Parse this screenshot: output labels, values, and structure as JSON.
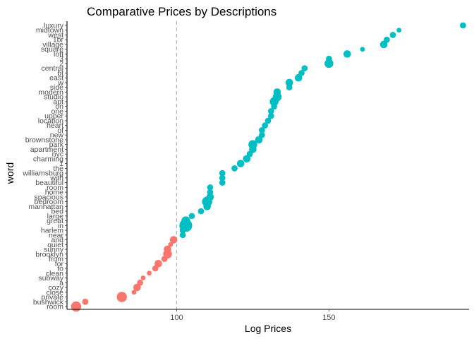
{
  "chart_data": {
    "type": "scatter",
    "title": "Comparative Prices by Descriptions",
    "xlabel": "Log Prices",
    "ylabel": "word",
    "xlim": [
      64,
      196
    ],
    "xticks": [
      100,
      150
    ],
    "reference_line": 100,
    "grid": false,
    "legend": "none",
    "colors": {
      "below": "#F8766D",
      "above": "#00BFC4",
      "reference": "#b3b3b3"
    },
    "categories": [
      "room",
      "bushwick",
      "private",
      "close",
      "cozy",
      "a",
      "subway",
      "clean",
      "to",
      "for",
      "from",
      "brooklyn",
      "sunny",
      "quiet",
      "and",
      "near",
      "harlem",
      "in",
      "great",
      "large",
      "bed",
      "manhattan",
      "bedroom",
      "spacious",
      "home",
      "room",
      "beautiful",
      "with",
      "williamsburg",
      "the",
      "1",
      "charming",
      "nyc",
      "apartment",
      "park",
      "brownstone",
      "new",
      "of",
      "heart",
      "location",
      "upper",
      "one",
      "on",
      "apt",
      "studio",
      "modern",
      "side",
      "w",
      "east",
      "bt",
      "central",
      "2",
      "3",
      "loft",
      "square",
      "village",
      "1br",
      "west",
      "midtown",
      "luxury"
    ],
    "points": [
      {
        "word": "room",
        "x": 67,
        "size": 6
      },
      {
        "word": "bushwick",
        "x": 70,
        "size": 3
      },
      {
        "word": "private",
        "x": 82,
        "size": 6
      },
      {
        "word": "close",
        "x": 86,
        "size": 2
      },
      {
        "word": "cozy",
        "x": 87,
        "size": 4
      },
      {
        "word": "a",
        "x": 88,
        "size": 3
      },
      {
        "word": "subway",
        "x": 89,
        "size": 2
      },
      {
        "word": "clean",
        "x": 91,
        "size": 2
      },
      {
        "word": "to",
        "x": 93,
        "size": 3
      },
      {
        "word": "for",
        "x": 94,
        "size": 4
      },
      {
        "word": "from",
        "x": 96,
        "size": 3
      },
      {
        "word": "brooklyn",
        "x": 97,
        "size": 5
      },
      {
        "word": "sunny",
        "x": 97,
        "size": 4
      },
      {
        "word": "quiet",
        "x": 98,
        "size": 2
      },
      {
        "word": "and",
        "x": 99,
        "size": 4
      },
      {
        "word": "near",
        "x": 102,
        "size": 3
      },
      {
        "word": "harlem",
        "x": 102,
        "size": 3
      },
      {
        "word": "in",
        "x": 103,
        "size": 8
      },
      {
        "word": "great",
        "x": 103,
        "size": 5
      },
      {
        "word": "large",
        "x": 105,
        "size": 3
      },
      {
        "word": "bed",
        "x": 108,
        "size": 3
      },
      {
        "word": "manhattan",
        "x": 110,
        "size": 4
      },
      {
        "word": "bedroom",
        "x": 110,
        "size": 6
      },
      {
        "word": "spacious",
        "x": 111,
        "size": 4
      },
      {
        "word": "home",
        "x": 111,
        "size": 3
      },
      {
        "word": "room",
        "x": 111,
        "size": 3
      },
      {
        "word": "beautiful",
        "x": 115,
        "size": 3
      },
      {
        "word": "with",
        "x": 115,
        "size": 3
      },
      {
        "word": "williamsburg",
        "x": 115,
        "size": 3
      },
      {
        "word": "the",
        "x": 119,
        "size": 3
      },
      {
        "word": "1",
        "x": 121,
        "size": 4
      },
      {
        "word": "charming",
        "x": 123,
        "size": 4
      },
      {
        "word": "nyc",
        "x": 124,
        "size": 3
      },
      {
        "word": "apartment",
        "x": 125,
        "size": 4
      },
      {
        "word": "park",
        "x": 125,
        "size": 5
      },
      {
        "word": "brownstone",
        "x": 127,
        "size": 4
      },
      {
        "word": "new",
        "x": 128,
        "size": 3
      },
      {
        "word": "of",
        "x": 128,
        "size": 3
      },
      {
        "word": "heart",
        "x": 129,
        "size": 3
      },
      {
        "word": "location",
        "x": 130,
        "size": 3
      },
      {
        "word": "upper",
        "x": 131,
        "size": 3
      },
      {
        "word": "one",
        "x": 131,
        "size": 3
      },
      {
        "word": "on",
        "x": 132,
        "size": 3
      },
      {
        "word": "apt",
        "x": 132,
        "size": 5
      },
      {
        "word": "studio",
        "x": 133,
        "size": 5
      },
      {
        "word": "modern",
        "x": 133,
        "size": 4
      },
      {
        "word": "side",
        "x": 137,
        "size": 3
      },
      {
        "word": "w",
        "x": 137,
        "size": 4
      },
      {
        "word": "east",
        "x": 140,
        "size": 4
      },
      {
        "word": "bt",
        "x": 141,
        "size": 3
      },
      {
        "word": "central",
        "x": 142,
        "size": 3
      },
      {
        "word": "2",
        "x": 150,
        "size": 5
      },
      {
        "word": "3",
        "x": 150,
        "size": 3
      },
      {
        "word": "loft",
        "x": 156,
        "size": 4
      },
      {
        "word": "square",
        "x": 161,
        "size": 2
      },
      {
        "word": "village",
        "x": 168,
        "size": 4
      },
      {
        "word": "1br",
        "x": 169,
        "size": 3
      },
      {
        "word": "west",
        "x": 171,
        "size": 3
      },
      {
        "word": "midtown",
        "x": 173,
        "size": 2
      },
      {
        "word": "luxury",
        "x": 194,
        "size": 3
      }
    ]
  }
}
